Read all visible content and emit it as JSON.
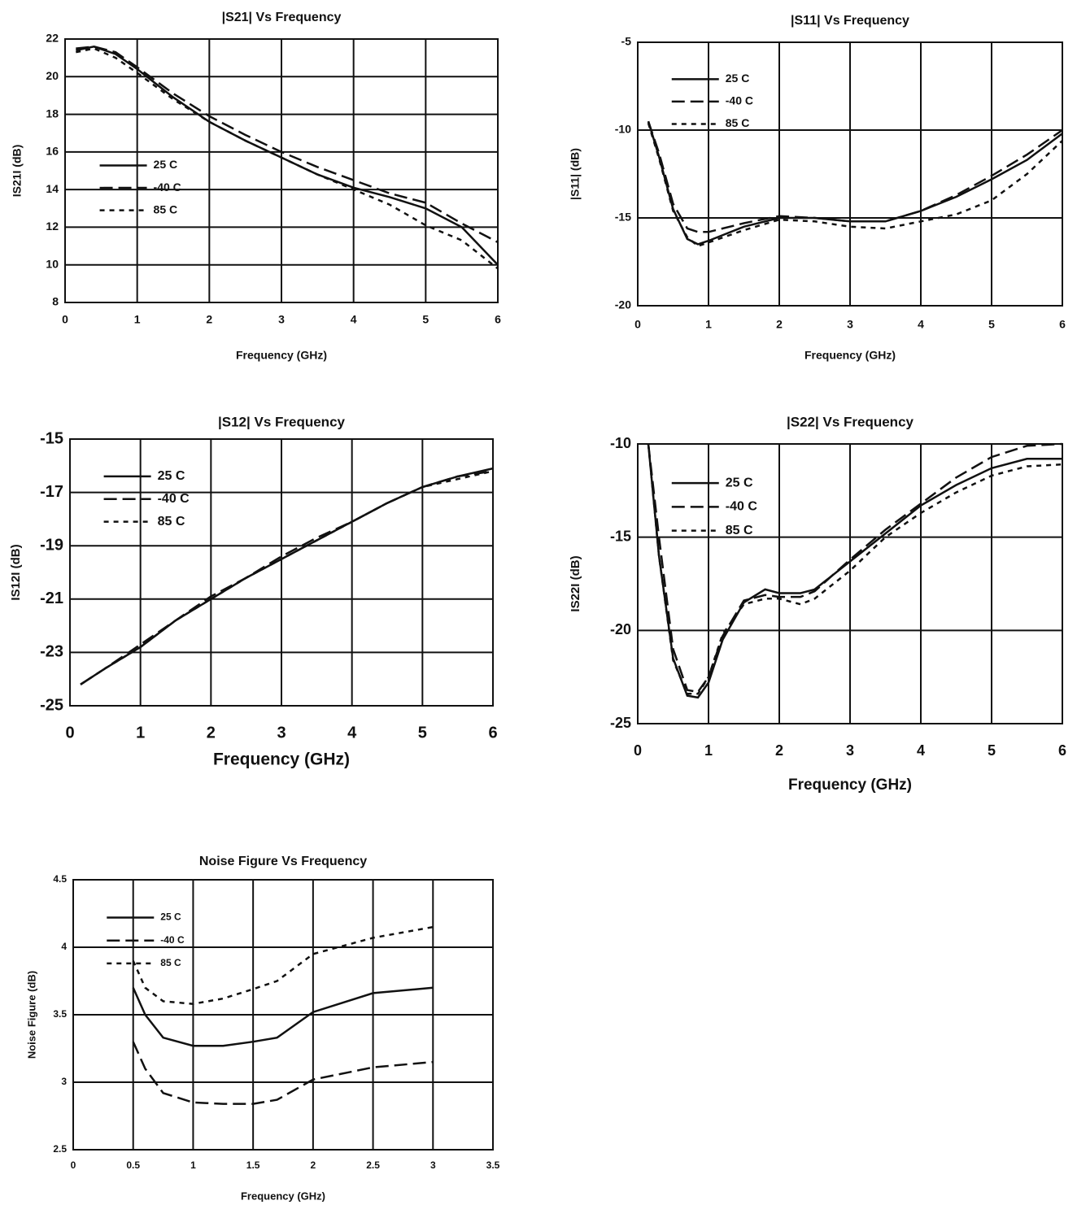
{
  "chart_data": [
    {
      "type": "line",
      "title": "|S21| Vs Frequency",
      "x_label": "Frequency (GHz)",
      "y_label": "IS21I (dB)",
      "x": [
        0.15,
        0.4,
        0.7,
        1,
        1.5,
        2,
        2.5,
        3,
        3.5,
        4,
        4.5,
        5,
        5.5,
        6
      ],
      "series": [
        {
          "name": "25 C",
          "color": "#111111",
          "dash": "solid",
          "values": [
            21.4,
            21.6,
            21.2,
            20.4,
            18.9,
            17.6,
            16.6,
            15.7,
            14.8,
            14.1,
            13.6,
            13.0,
            12.0,
            10.0
          ]
        },
        {
          "name": "-40 C",
          "color": "#111111",
          "dash": "long",
          "values": [
            21.5,
            21.6,
            21.3,
            20.5,
            19.1,
            17.9,
            16.9,
            16.0,
            15.2,
            14.5,
            13.8,
            13.3,
            12.2,
            11.2
          ]
        },
        {
          "name": "85 C",
          "color": "#111111",
          "dash": "short",
          "values": [
            21.3,
            21.5,
            21.0,
            20.2,
            18.8,
            17.6,
            16.6,
            15.7,
            14.8,
            14.0,
            13.2,
            12.1,
            11.3,
            9.8
          ]
        }
      ],
      "xlim": [
        0,
        6
      ],
      "ylim": [
        8,
        22
      ],
      "xticks": [
        0,
        1,
        2,
        3,
        4,
        5,
        6
      ],
      "yticks": [
        8,
        10,
        12,
        14,
        16,
        18,
        20,
        22
      ],
      "grid": true,
      "legend": "center left"
    },
    {
      "type": "line",
      "title": "|S11| Vs Frequency",
      "x_label": "Frequency (GHz)",
      "y_label": "|S11| (dB)",
      "x": [
        0.15,
        0.3,
        0.5,
        0.7,
        0.85,
        1,
        1.5,
        2,
        2.5,
        3,
        3.5,
        4,
        4.5,
        5,
        5.5,
        6
      ],
      "series": [
        {
          "name": "25 C",
          "color": "#111111",
          "dash": "solid",
          "values": [
            -9.5,
            -11.5,
            -14.5,
            -16.2,
            -16.5,
            -16.3,
            -15.5,
            -15,
            -15,
            -15.2,
            -15.2,
            -14.6,
            -13.8,
            -12.8,
            -11.7,
            -10.2
          ]
        },
        {
          "name": "-40 C",
          "color": "#111111",
          "dash": "long",
          "values": [
            -9.5,
            -11.3,
            -14.2,
            -15.6,
            -15.8,
            -15.8,
            -15.3,
            -14.9,
            -15,
            -15.2,
            -15.2,
            -14.6,
            -13.7,
            -12.6,
            -11.4,
            -10.0
          ]
        },
        {
          "name": "85 C",
          "color": "#111111",
          "dash": "short",
          "values": [
            -9.6,
            -11.6,
            -14.6,
            -16.1,
            -16.6,
            -16.4,
            -15.7,
            -15.1,
            -15.2,
            -15.5,
            -15.6,
            -15.2,
            -14.8,
            -14,
            -12.5,
            -10.6
          ]
        }
      ],
      "xlim": [
        0,
        6
      ],
      "ylim": [
        -20,
        -5
      ],
      "xticks": [
        0,
        1,
        2,
        3,
        4,
        5,
        6
      ],
      "yticks": [
        -20,
        -15,
        -10,
        -5
      ],
      "grid": true,
      "legend": "upper left"
    },
    {
      "type": "line",
      "title": "|S12| Vs Frequency",
      "x_label": "Frequency (GHz)",
      "y_label": "IS12I (dB)",
      "x": [
        0.15,
        0.5,
        1,
        1.5,
        2,
        2.5,
        3,
        3.5,
        4,
        4.5,
        5,
        5.5,
        6
      ],
      "series": [
        {
          "name": "25 C",
          "color": "#111111",
          "dash": "solid",
          "values": [
            -24.2,
            -23.6,
            -22.8,
            -21.8,
            -21.0,
            -20.2,
            -19.5,
            -18.8,
            -18.1,
            -17.4,
            -16.8,
            -16.4,
            -16.1
          ]
        },
        {
          "name": "-40 C",
          "color": "#111111",
          "dash": "long",
          "values": [
            -24.2,
            -23.6,
            -22.7,
            -21.8,
            -20.9,
            -20.2,
            -19.4,
            -18.7,
            -18.1,
            -17.4,
            -16.8,
            -16.4,
            -16.2
          ]
        },
        {
          "name": "85 C",
          "color": "#111111",
          "dash": "short",
          "values": [
            -24.2,
            -23.6,
            -22.8,
            -21.8,
            -21.0,
            -20.2,
            -19.5,
            -18.8,
            -18.1,
            -17.4,
            -16.8,
            -16.5,
            -16.2
          ]
        }
      ],
      "xlim": [
        0,
        6
      ],
      "ylim": [
        -25,
        -15
      ],
      "xticks": [
        0,
        1,
        2,
        3,
        4,
        5,
        6
      ],
      "yticks": [
        -25,
        -23,
        -21,
        -19,
        -17,
        -15
      ],
      "grid": true,
      "legend": "upper left"
    },
    {
      "type": "line",
      "title": "|S22| Vs Frequency",
      "x_label": "Frequency (GHz)",
      "y_label": "IS22I (dB)",
      "x": [
        0.15,
        0.3,
        0.5,
        0.7,
        0.85,
        1,
        1.2,
        1.5,
        1.8,
        2,
        2.3,
        2.5,
        3,
        3.5,
        4,
        4.5,
        5,
        5.5,
        6
      ],
      "series": [
        {
          "name": "25 C",
          "color": "#111111",
          "dash": "solid",
          "values": [
            -10,
            -16,
            -21.5,
            -23.5,
            -23.6,
            -22.8,
            -20.5,
            -18.5,
            -17.8,
            -18.0,
            -18.0,
            -17.8,
            -16.3,
            -14.8,
            -13.3,
            -12.2,
            -11.3,
            -10.8,
            -10.8
          ]
        },
        {
          "name": "-40 C",
          "color": "#111111",
          "dash": "long",
          "values": [
            -10,
            -15,
            -21,
            -23.2,
            -23.3,
            -22.5,
            -20.3,
            -18.4,
            -18.1,
            -18.2,
            -18.2,
            -17.9,
            -16.2,
            -14.6,
            -13.2,
            -11.8,
            -10.7,
            -10.1,
            -10.0
          ]
        },
        {
          "name": "85 C",
          "color": "#111111",
          "dash": "short",
          "values": [
            -10,
            -16,
            -21.6,
            -23.4,
            -23.4,
            -22.5,
            -20.2,
            -18.6,
            -18.3,
            -18.3,
            -18.6,
            -18.3,
            -16.8,
            -15.0,
            -13.7,
            -12.6,
            -11.7,
            -11.2,
            -11.1
          ]
        }
      ],
      "xlim": [
        0,
        6
      ],
      "ylim": [
        -25,
        -10
      ],
      "xticks": [
        0,
        1,
        2,
        3,
        4,
        5,
        6
      ],
      "yticks": [
        -25,
        -20,
        -15,
        -10
      ],
      "grid": true,
      "legend": "upper left"
    },
    {
      "type": "line",
      "title": "Noise Figure Vs Frequency",
      "x_label": "Frequency (GHz)",
      "y_label": "Noise Figure (dB)",
      "x": [
        0.5,
        0.6,
        0.75,
        1,
        1.25,
        1.5,
        1.7,
        2,
        2.5,
        3
      ],
      "series": [
        {
          "name": "25 C",
          "color": "#111111",
          "dash": "solid",
          "values": [
            3.7,
            3.5,
            3.33,
            3.27,
            3.27,
            3.3,
            3.33,
            3.52,
            3.66,
            3.7
          ]
        },
        {
          "name": "-40 C",
          "color": "#111111",
          "dash": "long",
          "values": [
            3.3,
            3.1,
            2.92,
            2.85,
            2.84,
            2.84,
            2.87,
            3.02,
            3.11,
            3.15
          ]
        },
        {
          "name": "85 C",
          "color": "#111111",
          "dash": "short",
          "values": [
            3.9,
            3.7,
            3.6,
            3.58,
            3.62,
            3.69,
            3.75,
            3.95,
            4.07,
            4.15
          ]
        }
      ],
      "xlim": [
        0,
        3.5
      ],
      "ylim": [
        2.5,
        4.5
      ],
      "xticks": [
        0,
        0.5,
        1,
        1.5,
        2,
        2.5,
        3,
        3.5
      ],
      "yticks": [
        2.5,
        3,
        3.5,
        4,
        4.5
      ],
      "grid": true,
      "legend": "upper left"
    }
  ]
}
